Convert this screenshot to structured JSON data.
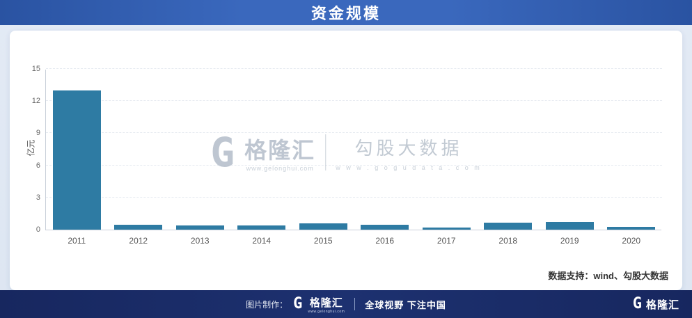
{
  "header": {
    "title": "资金规模"
  },
  "chart_data": {
    "type": "bar",
    "title": "资金规模",
    "categories": [
      "2011",
      "2012",
      "2013",
      "2014",
      "2015",
      "2016",
      "2017",
      "2018",
      "2019",
      "2020"
    ],
    "values": [
      13.0,
      0.45,
      0.4,
      0.4,
      0.58,
      0.45,
      0.2,
      0.62,
      0.7,
      0.25
    ],
    "xlabel": "",
    "ylabel": "亿元",
    "yticks": [
      0,
      3,
      6,
      9,
      12,
      15
    ],
    "ylim": [
      0,
      15
    ],
    "bar_color": "#2e7ba3",
    "grid": true,
    "legend": "none"
  },
  "watermark": {
    "logo_letter": "G",
    "brand": "格隆汇",
    "brand_url": "www.gelonghui.com",
    "product": "勾股大数据",
    "product_url": "w w w . g o g u d a t a . c o m"
  },
  "card": {
    "source_note": "数据支持：wind、勾股大数据"
  },
  "footer": {
    "made_by": "图片制作：",
    "logo_letter": "G",
    "brand": "格隆汇",
    "brand_url": "www.gelonghui.com",
    "slogan": "全球视野 下注中国",
    "right_logo_letter": "G",
    "right_brand": "格隆汇"
  }
}
